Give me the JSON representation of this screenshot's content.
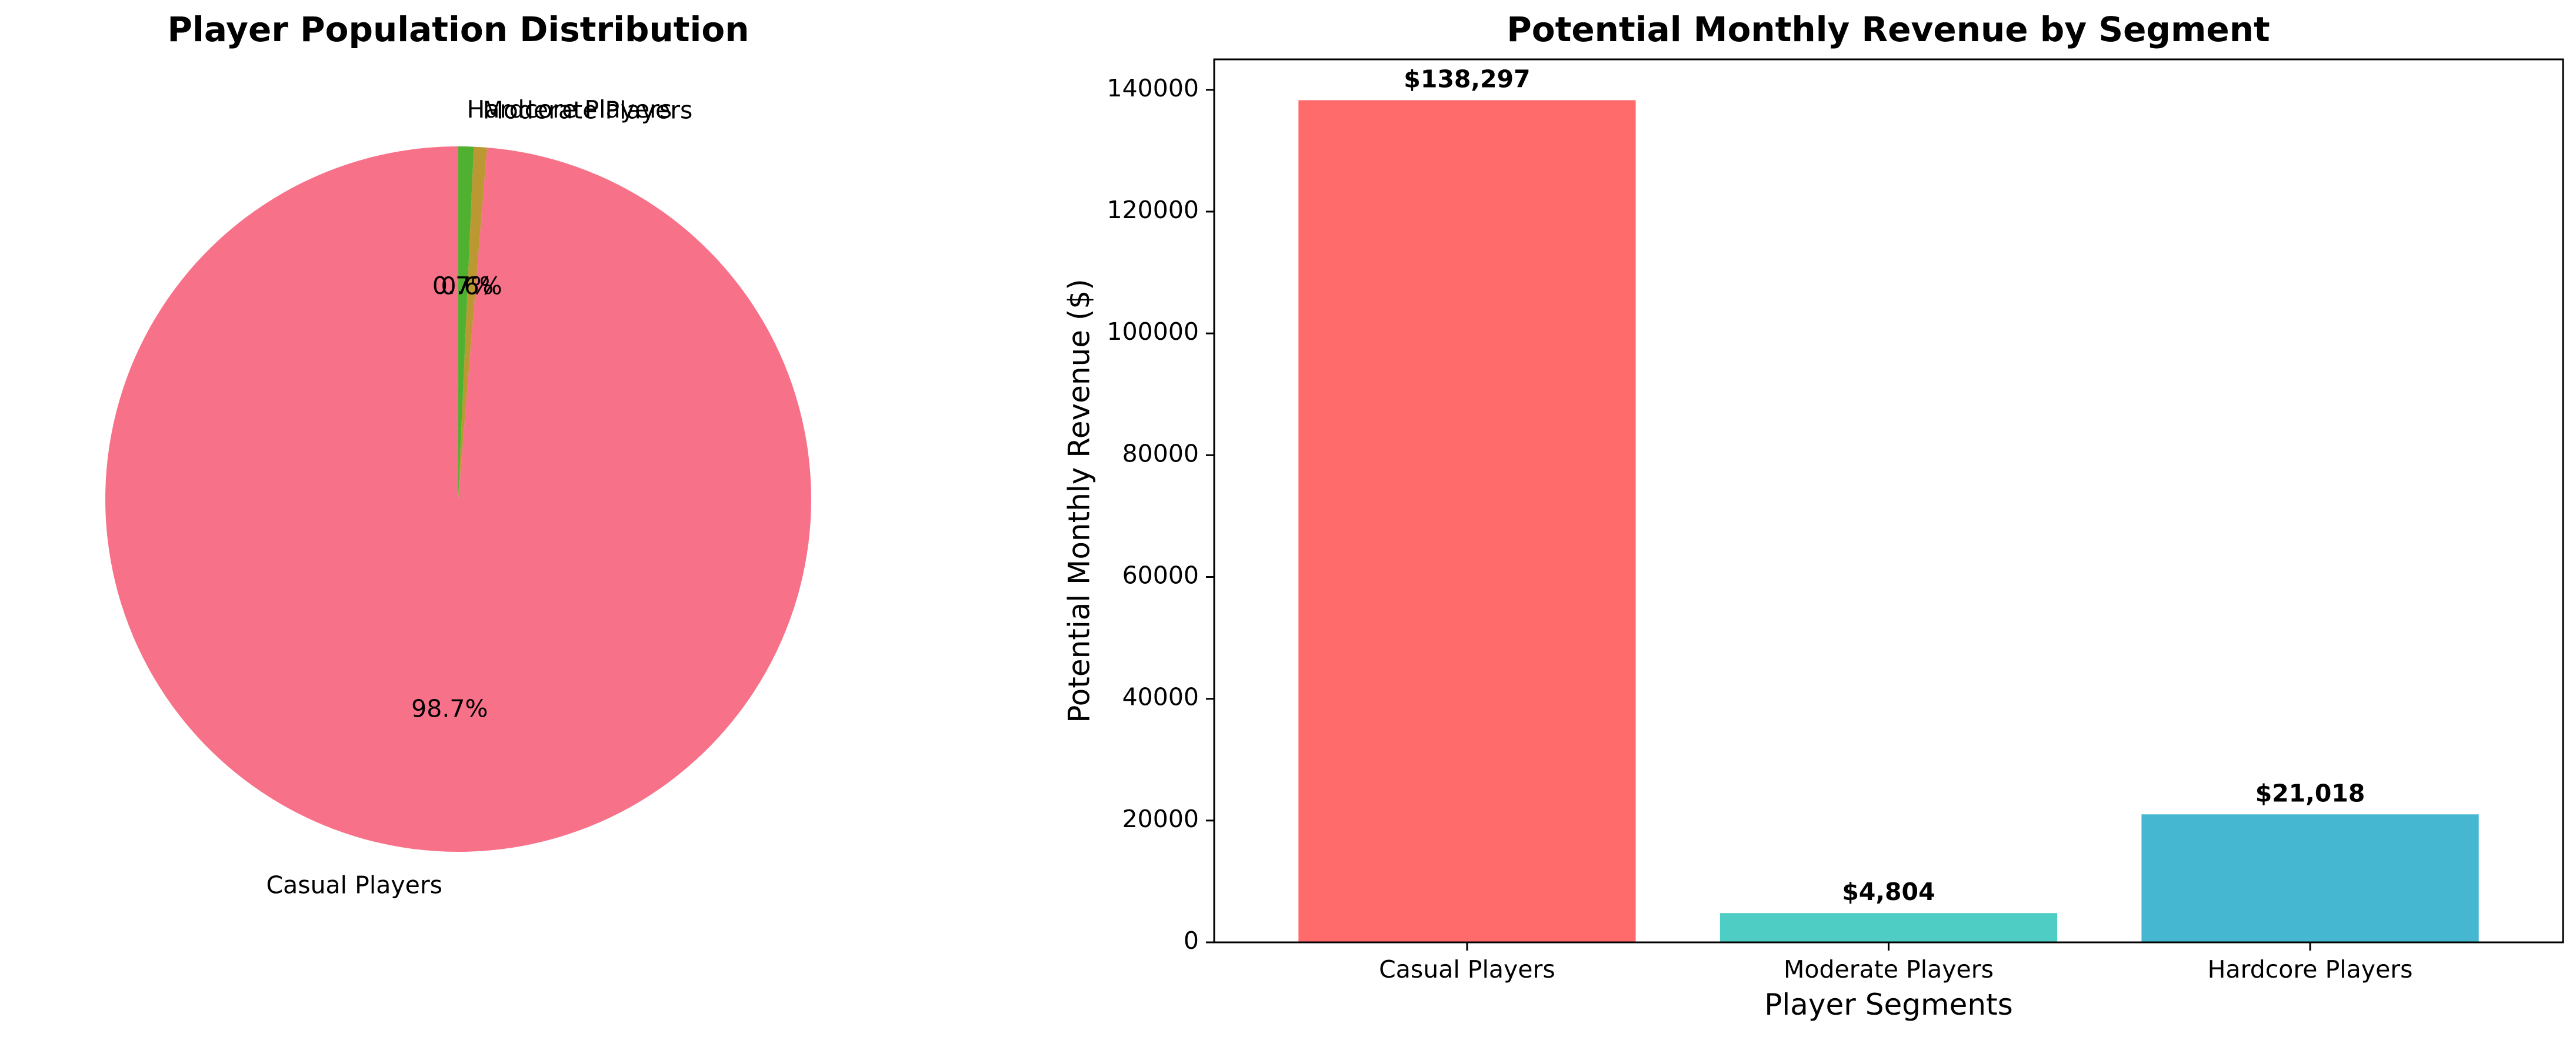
{
  "chart_data": [
    {
      "type": "pie",
      "title": "Player Population Distribution",
      "categories": [
        "Casual Players",
        "Moderate Players",
        "Hardcore Players"
      ],
      "values": [
        98.7,
        0.6,
        0.7
      ],
      "value_labels": [
        "98.7%",
        "0.6%",
        "0.7%"
      ],
      "colors": [
        "#f77189",
        "#bb9832",
        "#50b131"
      ]
    },
    {
      "type": "bar",
      "title": "Potential Monthly Revenue by Segment",
      "xlabel": "Player Segments",
      "ylabel": "Potential Monthly Revenue ($)",
      "categories": [
        "Casual Players",
        "Moderate Players",
        "Hardcore Players"
      ],
      "values": [
        138297,
        4804,
        21018
      ],
      "value_labels": [
        "$138,297",
        "$4,804",
        "$21,018"
      ],
      "colors": [
        "#ff6b6b",
        "#4ecdc4",
        "#45b7d1"
      ],
      "ylim": [
        0,
        145000
      ],
      "yticks": [
        0,
        20000,
        40000,
        60000,
        80000,
        100000,
        120000,
        140000
      ],
      "grid": false,
      "legend": false
    }
  ]
}
